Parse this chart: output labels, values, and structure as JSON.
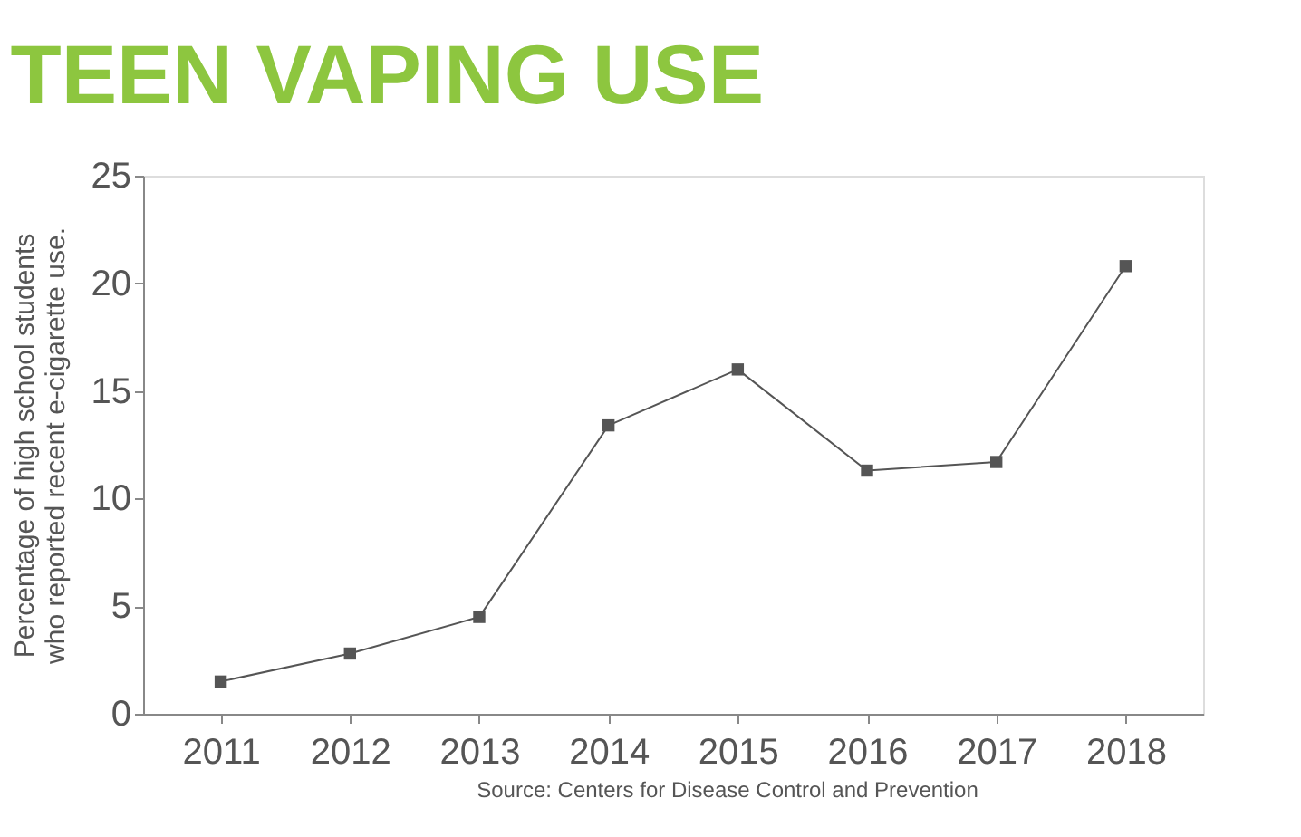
{
  "chart_data": {
    "type": "line",
    "title": "TEEN VAPING USE",
    "ylabel": "Percentage of high school students who reported recent e-cigarette use.",
    "categories": [
      "2011",
      "2012",
      "2013",
      "2014",
      "2015",
      "2016",
      "2017",
      "2018"
    ],
    "series": [
      {
        "color": "#555555",
        "values": [
          1.5,
          2.8,
          4.5,
          13.4,
          16.0,
          11.3,
          11.7,
          20.8
        ]
      }
    ],
    "ylim": [
      0,
      25
    ],
    "yticks": [
      0,
      5,
      10,
      15,
      20,
      25
    ],
    "grid": false,
    "marker": "square",
    "line_style": "solid",
    "legend": false,
    "annotations": [
      "Source: Centers for Disease Control and Prevention"
    ]
  }
}
